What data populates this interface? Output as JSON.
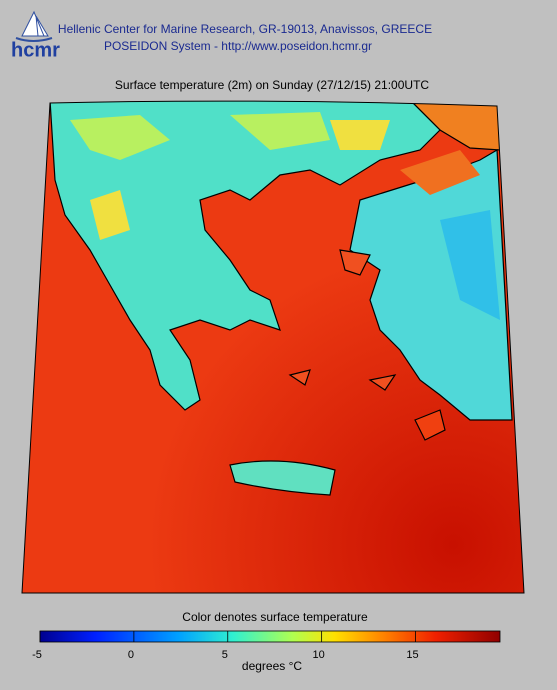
{
  "header": {
    "logo": "hcmr",
    "line1": "Hellenic Center for Marine Research, GR-19013, Anavissos, GREECE",
    "line2": "POSEIDON System - http://www.poseidon.hcmr.gr"
  },
  "map": {
    "title": "Surface temperature (2m) on Sunday (27/12/15) 21:00UTC"
  },
  "colorbar": {
    "caption": "Color denotes surface temperature",
    "label": "degrees °C",
    "lim": [
      -5,
      19.5
    ],
    "ticks": [
      -5,
      0,
      5,
      10,
      15
    ]
  }
}
